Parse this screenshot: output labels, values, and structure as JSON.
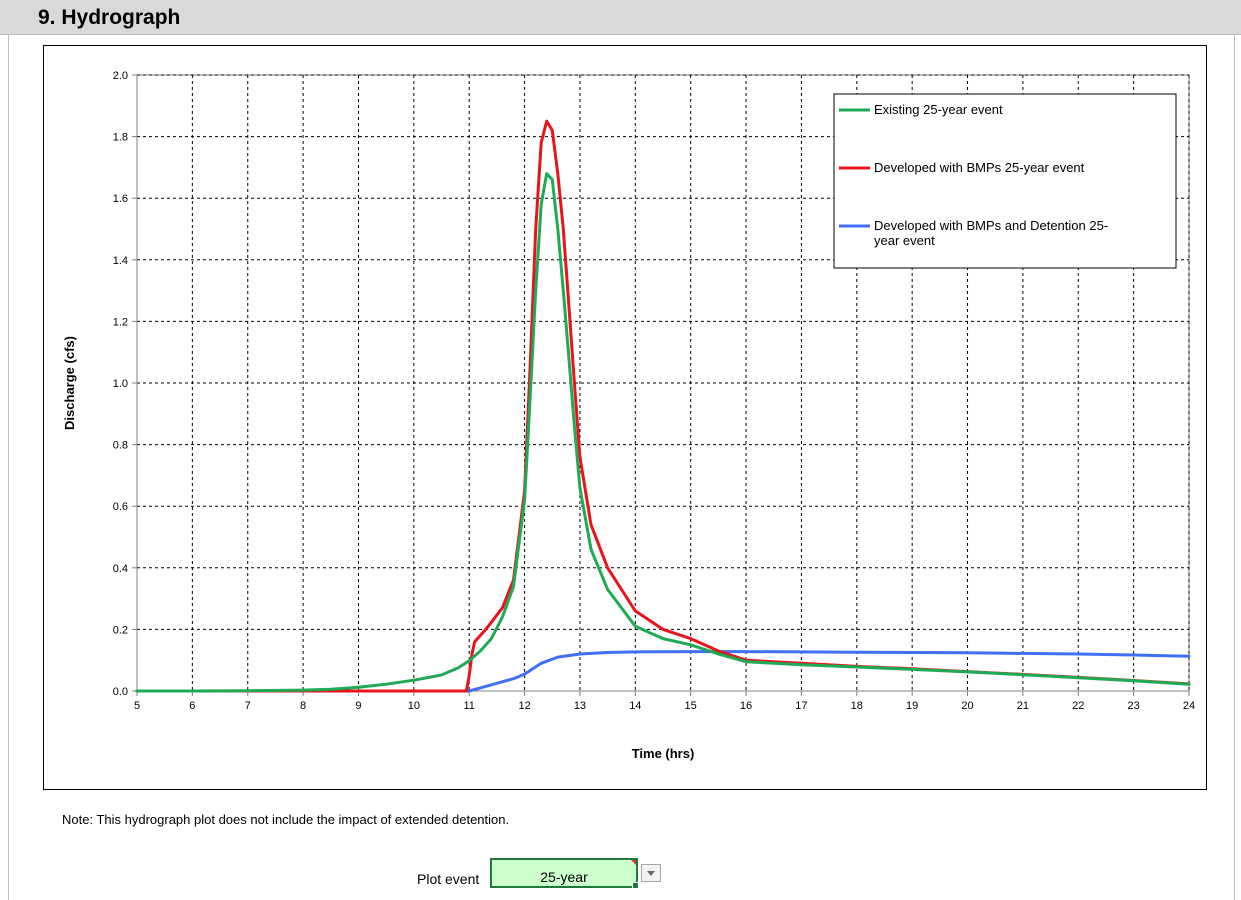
{
  "section": {
    "title": "9.  Hydrograph"
  },
  "note": "Note: This hydrograph plot does not include the impact of extended detention.",
  "plot_event": {
    "label": "Plot event",
    "value": "25-year"
  },
  "chart_data": {
    "type": "line",
    "title": "",
    "xlabel": "Time (hrs)",
    "ylabel": "Discharge (cfs)",
    "xlim": [
      5,
      24
    ],
    "ylim": [
      0,
      2.0
    ],
    "xticks": [
      5,
      6,
      7,
      8,
      9,
      10,
      11,
      12,
      13,
      14,
      15,
      16,
      17,
      18,
      19,
      20,
      21,
      22,
      23,
      24
    ],
    "yticks": [
      "0.0",
      "0.2",
      "0.4",
      "0.6",
      "0.8",
      "1.0",
      "1.2",
      "1.4",
      "1.6",
      "1.8",
      "2.0"
    ],
    "grid": true,
    "legend_position": "top-right",
    "series": [
      {
        "name": "Existing 25-year event",
        "color": "#1faa55",
        "x": [
          5,
          6,
          7,
          8,
          8.5,
          9,
          9.5,
          10,
          10.5,
          10.8,
          11,
          11.2,
          11.4,
          11.6,
          11.8,
          12,
          12.1,
          12.2,
          12.3,
          12.4,
          12.5,
          12.6,
          12.7,
          12.8,
          12.9,
          13,
          13.2,
          13.5,
          14,
          14.5,
          15,
          15.5,
          16,
          17,
          18,
          19,
          20,
          21,
          22,
          23,
          24
        ],
        "y": [
          0,
          0,
          0.001,
          0.003,
          0.006,
          0.012,
          0.022,
          0.035,
          0.052,
          0.075,
          0.098,
          0.13,
          0.17,
          0.24,
          0.34,
          0.62,
          0.95,
          1.3,
          1.58,
          1.68,
          1.66,
          1.5,
          1.3,
          1.08,
          0.86,
          0.66,
          0.46,
          0.33,
          0.21,
          0.17,
          0.15,
          0.12,
          0.095,
          0.085,
          0.078,
          0.07,
          0.062,
          0.053,
          0.043,
          0.033,
          0.022
        ]
      },
      {
        "name": "Developed with BMPs 25-year event",
        "color": "#e8141b",
        "x": [
          5,
          6,
          7,
          8,
          9,
          10,
          10.95,
          11,
          11.05,
          11.1,
          11.3,
          11.6,
          11.8,
          12,
          12.1,
          12.2,
          12.3,
          12.4,
          12.5,
          12.6,
          12.7,
          12.8,
          12.9,
          13,
          13.2,
          13.5,
          14,
          14.5,
          15,
          15.5,
          16,
          17,
          18,
          19,
          20,
          21,
          22,
          23,
          24
        ],
        "y": [
          0,
          0,
          0,
          0,
          0,
          0,
          0,
          0.05,
          0.12,
          0.16,
          0.2,
          0.27,
          0.36,
          0.65,
          1.05,
          1.5,
          1.78,
          1.85,
          1.82,
          1.68,
          1.5,
          1.25,
          1.0,
          0.76,
          0.54,
          0.4,
          0.26,
          0.2,
          0.17,
          0.13,
          0.1,
          0.09,
          0.08,
          0.072,
          0.063,
          0.054,
          0.044,
          0.034,
          0.023
        ]
      },
      {
        "name": "Developed with BMPs and Detention 25-year event",
        "color": "#3f6ff5",
        "x": [
          5,
          6,
          7,
          8,
          9,
          10,
          11,
          11.2,
          11.5,
          11.8,
          12,
          12.3,
          12.6,
          13,
          13.5,
          14,
          15,
          16,
          17,
          18,
          19,
          20,
          21,
          22,
          23,
          24
        ],
        "y": [
          0,
          0,
          0,
          0,
          0,
          0,
          0,
          0.01,
          0.025,
          0.04,
          0.055,
          0.09,
          0.11,
          0.12,
          0.125,
          0.127,
          0.128,
          0.128,
          0.127,
          0.126,
          0.125,
          0.124,
          0.122,
          0.12,
          0.117,
          0.113
        ]
      }
    ]
  }
}
